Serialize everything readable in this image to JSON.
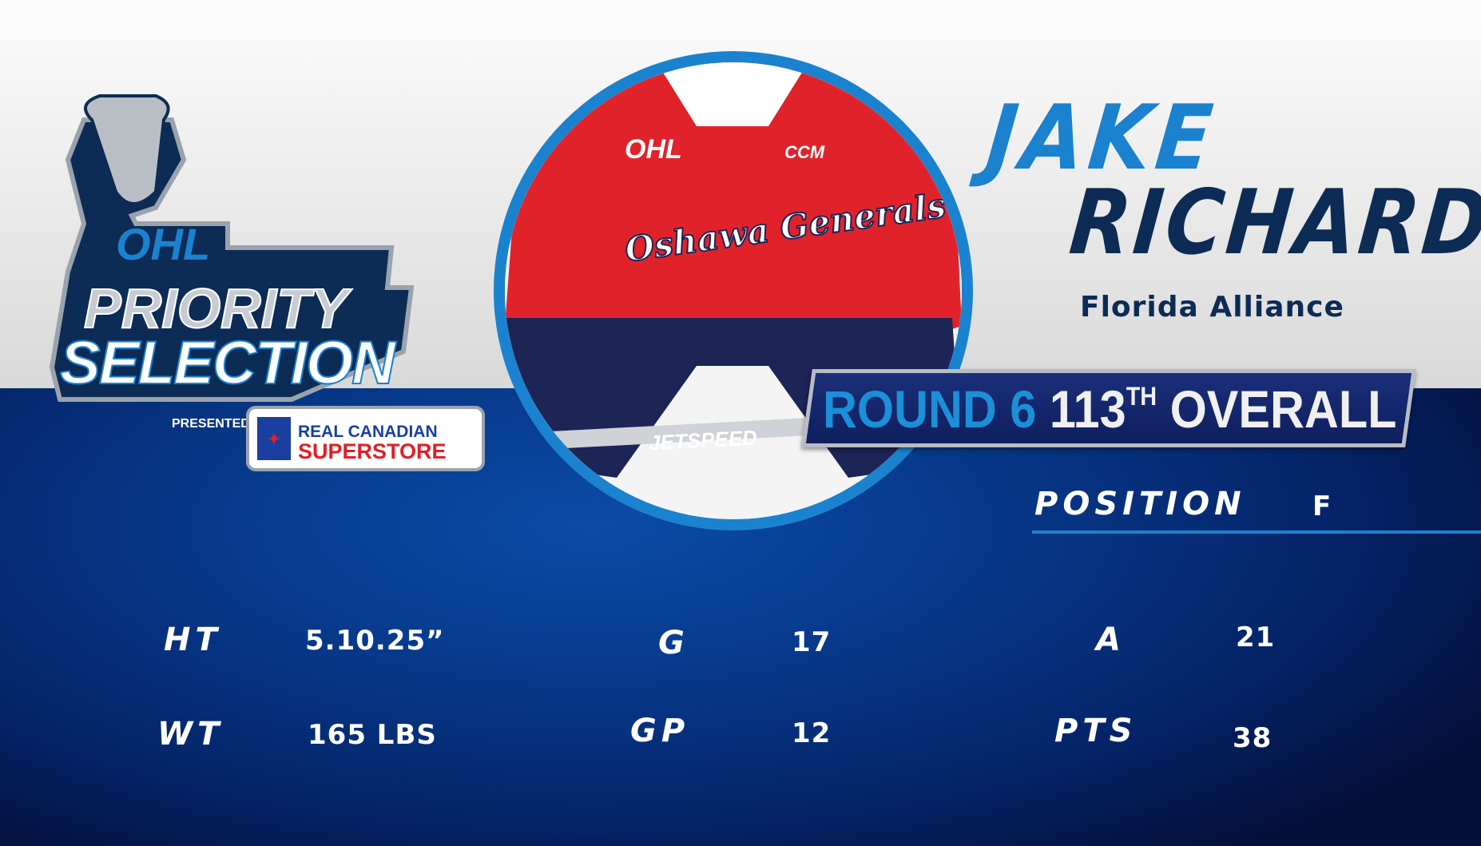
{
  "logo": {
    "league": "OHL",
    "line1": "PRIORITY",
    "line2": "SELECTION",
    "presented_by": "PRESENTED BY",
    "sponsor_line1": "REAL CANADIAN",
    "sponsor_line2": "SUPERSTORE"
  },
  "photo": {
    "jersey_text": "Oshawa Generals",
    "brand": "CCM",
    "league_patch": "OHL",
    "stick_text": "JETSPEED"
  },
  "player": {
    "first_name": "JAKE",
    "last_name": "RICHARD",
    "team": "Florida Alliance"
  },
  "pick": {
    "round": "ROUND 6",
    "number": "113",
    "suffix": "TH",
    "overall": "OVERALL"
  },
  "position": {
    "label": "POSITION",
    "value": "F"
  },
  "stats": [
    {
      "label": "HT",
      "value": "5.10.25”"
    },
    {
      "label": "WT",
      "value": "165 LBS"
    },
    {
      "label": "G",
      "value": "17"
    },
    {
      "label": "GP",
      "value": "12"
    },
    {
      "label": "A",
      "value": "21"
    },
    {
      "label": "PTS",
      "value": "38"
    }
  ],
  "colors": {
    "accent": "#1b82cf",
    "navy": "#0c2b55",
    "red": "#e01f26"
  }
}
